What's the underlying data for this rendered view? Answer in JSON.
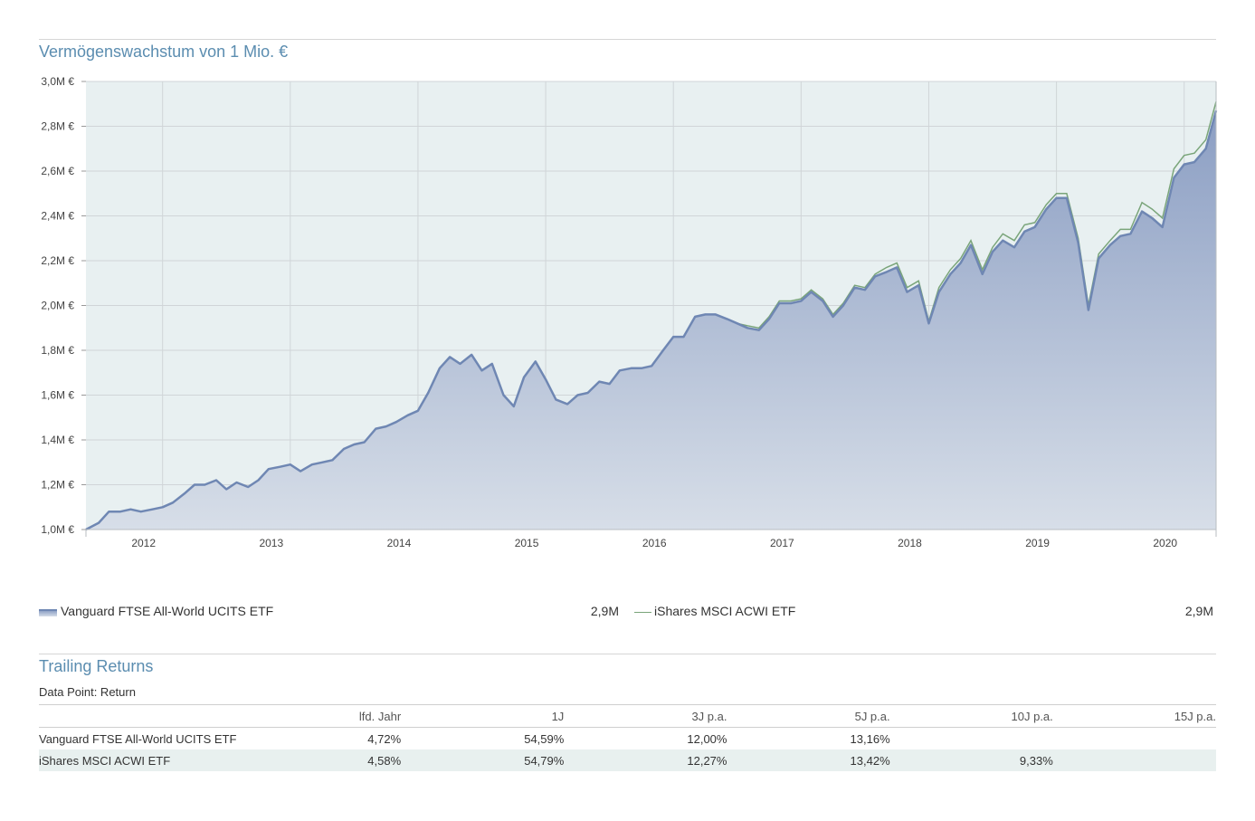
{
  "header": {
    "chart_title": "Vermögenswachstum von 1 Mio. €"
  },
  "chart_data": {
    "type": "area",
    "title": "Vermögenswachstum von 1 Mio. €",
    "xlabel": "",
    "ylabel": "",
    "ylim": [
      1.0,
      3.0
    ],
    "xlim": [
      2011.4,
      2020.25
    ],
    "grid": true,
    "y_ticks": [
      1.0,
      1.2,
      1.4,
      1.6,
      1.8,
      2.0,
      2.2,
      2.4,
      2.6,
      2.8,
      3.0
    ],
    "y_tick_labels": [
      "1,0M €",
      "1,2M €",
      "1,4M €",
      "1,6M €",
      "1,8M €",
      "2,0M €",
      "2,2M €",
      "2,4M €",
      "2,6M €",
      "2,8M €",
      "3,0M €"
    ],
    "x_ticks": [
      2012,
      2013,
      2014,
      2015,
      2016,
      2017,
      2018,
      2019,
      2020
    ],
    "x_tick_labels": [
      "2012",
      "2013",
      "2014",
      "2015",
      "2016",
      "2017",
      "2018",
      "2019",
      "2020"
    ],
    "colors": {
      "area_line": "#6f87b3",
      "area_fill_top": "#8b9ec3",
      "area_fill_bottom": "#d7dee8",
      "line2": "#7aa57a",
      "plot_bg": "#e8f0f1",
      "grid": "#d0d5d8"
    },
    "series": [
      {
        "name": "Vanguard FTSE All-World UCITS ETF",
        "kind": "area",
        "points": [
          [
            2011.4,
            1.0
          ],
          [
            2011.5,
            1.03
          ],
          [
            2011.58,
            1.08
          ],
          [
            2011.67,
            1.08
          ],
          [
            2011.75,
            1.09
          ],
          [
            2011.83,
            1.08
          ],
          [
            2011.92,
            1.09
          ],
          [
            2012.0,
            1.1
          ],
          [
            2012.08,
            1.12
          ],
          [
            2012.17,
            1.16
          ],
          [
            2012.25,
            1.2
          ],
          [
            2012.33,
            1.2
          ],
          [
            2012.42,
            1.22
          ],
          [
            2012.5,
            1.18
          ],
          [
            2012.58,
            1.21
          ],
          [
            2012.67,
            1.19
          ],
          [
            2012.75,
            1.22
          ],
          [
            2012.83,
            1.27
          ],
          [
            2012.92,
            1.28
          ],
          [
            2013.0,
            1.29
          ],
          [
            2013.08,
            1.26
          ],
          [
            2013.17,
            1.29
          ],
          [
            2013.25,
            1.3
          ],
          [
            2013.33,
            1.31
          ],
          [
            2013.42,
            1.36
          ],
          [
            2013.5,
            1.38
          ],
          [
            2013.58,
            1.39
          ],
          [
            2013.67,
            1.45
          ],
          [
            2013.75,
            1.46
          ],
          [
            2013.83,
            1.48
          ],
          [
            2013.92,
            1.51
          ],
          [
            2014.0,
            1.53
          ],
          [
            2014.08,
            1.61
          ],
          [
            2014.17,
            1.72
          ],
          [
            2014.25,
            1.77
          ],
          [
            2014.33,
            1.74
          ],
          [
            2014.42,
            1.78
          ],
          [
            2014.5,
            1.71
          ],
          [
            2014.58,
            1.74
          ],
          [
            2014.67,
            1.6
          ],
          [
            2014.75,
            1.55
          ],
          [
            2014.83,
            1.68
          ],
          [
            2014.92,
            1.75
          ],
          [
            2015.0,
            1.67
          ],
          [
            2015.08,
            1.58
          ],
          [
            2015.17,
            1.56
          ],
          [
            2015.25,
            1.6
          ],
          [
            2015.33,
            1.61
          ],
          [
            2015.42,
            1.66
          ],
          [
            2015.5,
            1.65
          ],
          [
            2015.58,
            1.71
          ],
          [
            2015.67,
            1.72
          ],
          [
            2015.75,
            1.72
          ],
          [
            2015.83,
            1.73
          ],
          [
            2015.92,
            1.8
          ],
          [
            2016.0,
            1.86
          ],
          [
            2016.08,
            1.86
          ],
          [
            2016.17,
            1.95
          ],
          [
            2016.25,
            1.96
          ],
          [
            2016.33,
            1.96
          ],
          [
            2016.42,
            1.94
          ],
          [
            2016.5,
            1.92
          ],
          [
            2016.58,
            1.9
          ],
          [
            2016.67,
            1.89
          ],
          [
            2016.75,
            1.94
          ],
          [
            2016.83,
            2.01
          ],
          [
            2016.92,
            2.01
          ],
          [
            2017.0,
            2.02
          ],
          [
            2017.08,
            2.06
          ],
          [
            2017.17,
            2.02
          ],
          [
            2017.25,
            1.95
          ],
          [
            2017.33,
            2.0
          ],
          [
            2017.42,
            2.08
          ],
          [
            2017.5,
            2.07
          ],
          [
            2017.58,
            2.13
          ],
          [
            2017.67,
            2.15
          ],
          [
            2017.75,
            2.17
          ],
          [
            2017.83,
            2.06
          ],
          [
            2017.92,
            2.09
          ],
          [
            2018.0,
            1.92
          ],
          [
            2018.08,
            2.06
          ],
          [
            2018.17,
            2.14
          ],
          [
            2018.25,
            2.19
          ],
          [
            2018.33,
            2.27
          ],
          [
            2018.42,
            2.14
          ],
          [
            2018.5,
            2.24
          ],
          [
            2018.58,
            2.29
          ],
          [
            2018.67,
            2.26
          ],
          [
            2018.75,
            2.33
          ],
          [
            2018.83,
            2.35
          ],
          [
            2018.92,
            2.43
          ],
          [
            2019.0,
            2.48
          ],
          [
            2019.08,
            2.48
          ],
          [
            2019.17,
            2.28
          ],
          [
            2019.25,
            1.98
          ],
          [
            2019.33,
            2.21
          ],
          [
            2019.42,
            2.27
          ],
          [
            2019.5,
            2.31
          ],
          [
            2019.58,
            2.32
          ],
          [
            2019.67,
            2.42
          ],
          [
            2019.75,
            2.39
          ],
          [
            2019.83,
            2.35
          ],
          [
            2019.92,
            2.57
          ],
          [
            2020.0,
            2.63
          ],
          [
            2020.08,
            2.64
          ],
          [
            2020.17,
            2.7
          ],
          [
            2020.25,
            2.87
          ]
        ]
      },
      {
        "name": "iShares MSCI ACWI ETF",
        "kind": "line",
        "points": [
          [
            2011.4,
            1.0
          ],
          [
            2011.5,
            1.03
          ],
          [
            2011.58,
            1.08
          ],
          [
            2011.67,
            1.08
          ],
          [
            2011.75,
            1.09
          ],
          [
            2011.83,
            1.08
          ],
          [
            2011.92,
            1.09
          ],
          [
            2012.0,
            1.1
          ],
          [
            2012.08,
            1.12
          ],
          [
            2012.17,
            1.16
          ],
          [
            2012.25,
            1.2
          ],
          [
            2012.33,
            1.2
          ],
          [
            2012.42,
            1.22
          ],
          [
            2012.5,
            1.18
          ],
          [
            2012.58,
            1.21
          ],
          [
            2012.67,
            1.19
          ],
          [
            2012.75,
            1.22
          ],
          [
            2012.83,
            1.27
          ],
          [
            2012.92,
            1.28
          ],
          [
            2013.0,
            1.29
          ],
          [
            2013.08,
            1.26
          ],
          [
            2013.17,
            1.29
          ],
          [
            2013.25,
            1.3
          ],
          [
            2013.33,
            1.31
          ],
          [
            2013.42,
            1.36
          ],
          [
            2013.5,
            1.38
          ],
          [
            2013.58,
            1.39
          ],
          [
            2013.67,
            1.45
          ],
          [
            2013.75,
            1.46
          ],
          [
            2013.83,
            1.48
          ],
          [
            2013.92,
            1.51
          ],
          [
            2014.0,
            1.53
          ],
          [
            2014.08,
            1.61
          ],
          [
            2014.17,
            1.72
          ],
          [
            2014.25,
            1.77
          ],
          [
            2014.33,
            1.74
          ],
          [
            2014.42,
            1.78
          ],
          [
            2014.5,
            1.71
          ],
          [
            2014.58,
            1.74
          ],
          [
            2014.67,
            1.6
          ],
          [
            2014.75,
            1.55
          ],
          [
            2014.83,
            1.68
          ],
          [
            2014.92,
            1.75
          ],
          [
            2015.0,
            1.67
          ],
          [
            2015.08,
            1.58
          ],
          [
            2015.17,
            1.56
          ],
          [
            2015.25,
            1.6
          ],
          [
            2015.33,
            1.61
          ],
          [
            2015.42,
            1.66
          ],
          [
            2015.5,
            1.65
          ],
          [
            2015.58,
            1.71
          ],
          [
            2015.67,
            1.72
          ],
          [
            2015.75,
            1.72
          ],
          [
            2015.83,
            1.73
          ],
          [
            2015.92,
            1.8
          ],
          [
            2016.0,
            1.86
          ],
          [
            2016.08,
            1.86
          ],
          [
            2016.17,
            1.95
          ],
          [
            2016.25,
            1.96
          ],
          [
            2016.33,
            1.96
          ],
          [
            2016.42,
            1.94
          ],
          [
            2016.5,
            1.92
          ],
          [
            2016.58,
            1.91
          ],
          [
            2016.67,
            1.9
          ],
          [
            2016.75,
            1.95
          ],
          [
            2016.83,
            2.02
          ],
          [
            2016.92,
            2.02
          ],
          [
            2017.0,
            2.03
          ],
          [
            2017.08,
            2.07
          ],
          [
            2017.17,
            2.03
          ],
          [
            2017.25,
            1.96
          ],
          [
            2017.33,
            2.01
          ],
          [
            2017.42,
            2.09
          ],
          [
            2017.5,
            2.08
          ],
          [
            2017.58,
            2.14
          ],
          [
            2017.67,
            2.17
          ],
          [
            2017.75,
            2.19
          ],
          [
            2017.83,
            2.08
          ],
          [
            2017.92,
            2.11
          ],
          [
            2018.0,
            1.93
          ],
          [
            2018.08,
            2.08
          ],
          [
            2018.17,
            2.16
          ],
          [
            2018.25,
            2.21
          ],
          [
            2018.33,
            2.29
          ],
          [
            2018.42,
            2.16
          ],
          [
            2018.5,
            2.26
          ],
          [
            2018.58,
            2.32
          ],
          [
            2018.67,
            2.29
          ],
          [
            2018.75,
            2.36
          ],
          [
            2018.83,
            2.37
          ],
          [
            2018.92,
            2.45
          ],
          [
            2019.0,
            2.5
          ],
          [
            2019.08,
            2.5
          ],
          [
            2019.17,
            2.3
          ],
          [
            2019.25,
            2.0
          ],
          [
            2019.33,
            2.23
          ],
          [
            2019.42,
            2.29
          ],
          [
            2019.5,
            2.34
          ],
          [
            2019.58,
            2.34
          ],
          [
            2019.67,
            2.46
          ],
          [
            2019.75,
            2.43
          ],
          [
            2019.83,
            2.39
          ],
          [
            2019.92,
            2.61
          ],
          [
            2020.0,
            2.67
          ],
          [
            2020.08,
            2.68
          ],
          [
            2020.17,
            2.74
          ],
          [
            2020.25,
            2.91
          ]
        ]
      }
    ]
  },
  "legend": {
    "items": [
      {
        "label": "Vanguard FTSE All-World UCITS ETF",
        "value": "2,9M"
      },
      {
        "label": "iShares MSCI ACWI ETF",
        "value": "2,9M"
      }
    ]
  },
  "returns": {
    "title": "Trailing Returns",
    "data_point_label": "Data Point: Return",
    "columns": [
      "",
      "lfd. Jahr",
      "1J",
      "3J p.a.",
      "5J p.a.",
      "10J p.a.",
      "15J p.a."
    ],
    "rows": [
      {
        "name": "Vanguard FTSE All-World UCITS ETF",
        "cells": [
          "4,72%",
          "54,59%",
          "12,00%",
          "13,16%",
          "",
          ""
        ]
      },
      {
        "name": "iShares MSCI ACWI ETF",
        "cells": [
          "4,58%",
          "54,79%",
          "12,27%",
          "13,42%",
          "9,33%",
          ""
        ]
      }
    ]
  }
}
